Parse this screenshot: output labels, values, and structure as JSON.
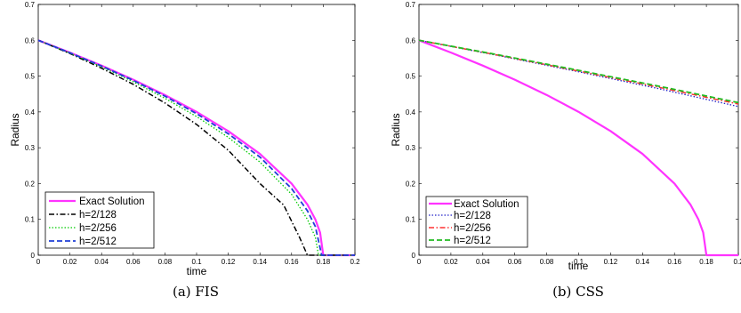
{
  "chart_data": [
    {
      "type": "line",
      "caption": "(a) FIS",
      "xlabel": "time",
      "ylabel": "Radius",
      "xlim": [
        0,
        0.2
      ],
      "ylim": [
        0,
        0.7
      ],
      "xticks": [
        "0",
        "0.02",
        "0.04",
        "0.06",
        "0.08",
        "0.1",
        "0.12",
        "0.14",
        "0.16",
        "0.18",
        "0.2"
      ],
      "yticks": [
        "0",
        "0.1",
        "0.2",
        "0.3",
        "0.4",
        "0.5",
        "0.6",
        "0.7"
      ],
      "grid": false,
      "legend_position": "bottom-left",
      "series": [
        {
          "name": "Exact Solution",
          "color": "#ff33ff",
          "dash": "solid",
          "x": [
            0,
            0.02,
            0.04,
            0.06,
            0.08,
            0.1,
            0.12,
            0.14,
            0.16,
            0.17,
            0.175,
            0.178,
            0.18,
            0.2
          ],
          "y": [
            0.6,
            0.5657,
            0.5292,
            0.4899,
            0.4472,
            0.4,
            0.3464,
            0.2828,
            0.2,
            0.1414,
            0.1,
            0.0632,
            0,
            0
          ]
        },
        {
          "name": "h=2/128",
          "color": "#000000",
          "dash": "dashdot",
          "x": [
            0,
            0.02,
            0.04,
            0.06,
            0.08,
            0.1,
            0.12,
            0.14,
            0.155,
            0.165,
            0.17,
            0.2
          ],
          "y": [
            0.6,
            0.563,
            0.522,
            0.477,
            0.425,
            0.365,
            0.293,
            0.2,
            0.14,
            0.05,
            0,
            0
          ]
        },
        {
          "name": "h=2/256",
          "color": "#00cc00",
          "dash": "dotted",
          "x": [
            0,
            0.02,
            0.04,
            0.06,
            0.08,
            0.1,
            0.12,
            0.14,
            0.16,
            0.17,
            0.175,
            0.177,
            0.2
          ],
          "y": [
            0.6,
            0.564,
            0.526,
            0.484,
            0.438,
            0.387,
            0.329,
            0.26,
            0.17,
            0.1,
            0.05,
            0,
            0
          ]
        },
        {
          "name": "h=2/512",
          "color": "#1f3fd6",
          "dash": "dashed",
          "x": [
            0,
            0.02,
            0.04,
            0.06,
            0.08,
            0.1,
            0.12,
            0.14,
            0.16,
            0.17,
            0.175,
            0.179,
            0.2
          ],
          "y": [
            0.6,
            0.565,
            0.528,
            0.488,
            0.444,
            0.395,
            0.339,
            0.274,
            0.186,
            0.124,
            0.08,
            0,
            0
          ]
        }
      ]
    },
    {
      "type": "line",
      "caption": "(b) CSS",
      "xlabel": "time",
      "ylabel": "Radius",
      "xlim": [
        0,
        0.2
      ],
      "ylim": [
        0,
        0.7
      ],
      "xticks": [
        "0",
        "0.02",
        "0.04",
        "0.06",
        "0.08",
        "0.1",
        "0.12",
        "0.14",
        "0.16",
        "0.18",
        "0.2"
      ],
      "yticks": [
        "0",
        "0.1",
        "0.2",
        "0.3",
        "0.4",
        "0.5",
        "0.6",
        "0.7"
      ],
      "grid": false,
      "legend_position": "bottom-left",
      "series": [
        {
          "name": "Exact Solution",
          "color": "#ff33ff",
          "dash": "solid",
          "x": [
            0,
            0.02,
            0.04,
            0.06,
            0.08,
            0.1,
            0.12,
            0.14,
            0.16,
            0.17,
            0.175,
            0.178,
            0.18,
            0.2
          ],
          "y": [
            0.6,
            0.5657,
            0.5292,
            0.4899,
            0.4472,
            0.4,
            0.3464,
            0.2828,
            0.2,
            0.1414,
            0.1,
            0.0632,
            0,
            0
          ]
        },
        {
          "name": "h=2/128",
          "color": "#2020c8",
          "dash": "dotted",
          "x": [
            0,
            0.05,
            0.1,
            0.15,
            0.2
          ],
          "y": [
            0.6,
            0.557,
            0.512,
            0.465,
            0.415
          ]
        },
        {
          "name": "h=2/256",
          "color": "#ff3030",
          "dash": "dashdot",
          "x": [
            0,
            0.05,
            0.1,
            0.15,
            0.2
          ],
          "y": [
            0.6,
            0.558,
            0.514,
            0.469,
            0.422
          ]
        },
        {
          "name": "h=2/512",
          "color": "#22bb22",
          "dash": "dashed",
          "x": [
            0,
            0.05,
            0.1,
            0.15,
            0.2
          ],
          "y": [
            0.6,
            0.559,
            0.516,
            0.472,
            0.426
          ]
        }
      ]
    }
  ]
}
